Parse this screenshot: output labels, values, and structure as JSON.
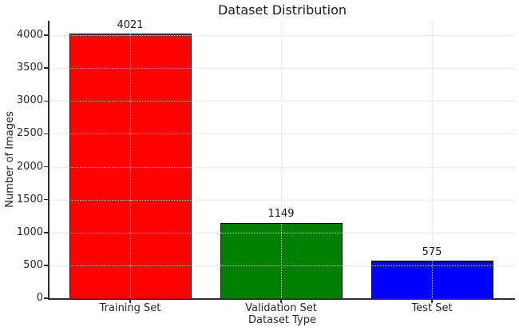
{
  "chart_data": {
    "type": "bar",
    "title": "Dataset Distribution",
    "xlabel": "Dataset Type",
    "ylabel": "Number of Images",
    "categories": [
      "Training Set",
      "Validation Set",
      "Test Set"
    ],
    "values": [
      4021,
      1149,
      575
    ],
    "value_labels": [
      "4021",
      "1149",
      "575"
    ],
    "bar_colors": [
      "#ff0000",
      "#008000",
      "#0000ff"
    ],
    "bar_edge_color": "#000000",
    "yticks": [
      0,
      500,
      1000,
      1500,
      2000,
      2500,
      3000,
      3500,
      4000
    ],
    "ylim": [
      0,
      4220
    ],
    "grid": "dotted gridlines on both axes, drawn over bars",
    "legend": "none",
    "background_color": "#ffffff",
    "spines": "left and bottom only"
  }
}
